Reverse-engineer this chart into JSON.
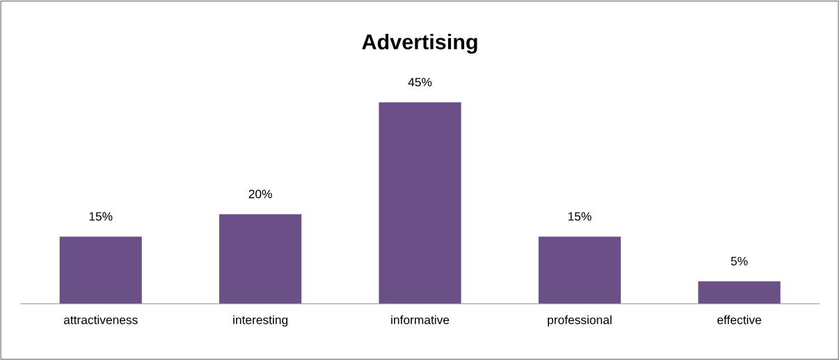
{
  "chart_data": {
    "type": "bar",
    "title": "Advertising",
    "categories": [
      "attractiveness",
      "interesting",
      "informative",
      "professional",
      "effective"
    ],
    "values": [
      15,
      20,
      45,
      15,
      5
    ],
    "value_labels": [
      "15%",
      "20%",
      "45%",
      "15%",
      "5%"
    ],
    "color": "#6a5086",
    "grid": false,
    "legend": false
  }
}
